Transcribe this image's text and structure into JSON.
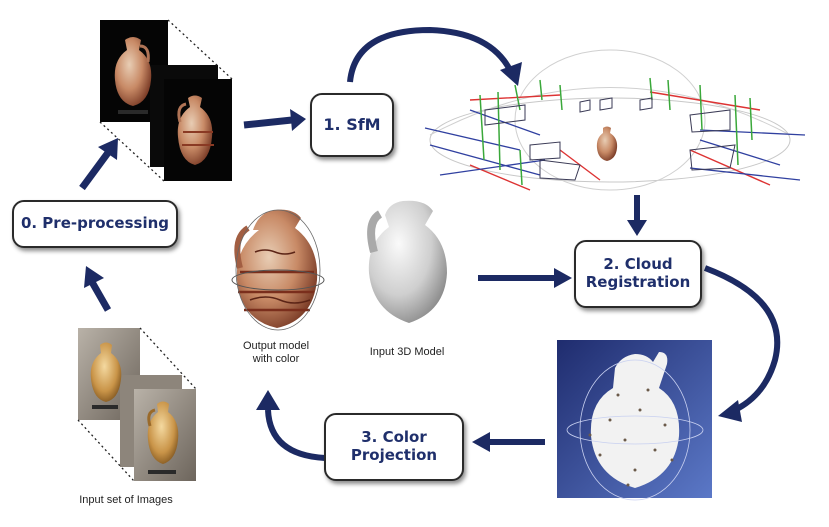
{
  "steps": {
    "preprocessing": "0. Pre-processing",
    "sfm": "1. SfM",
    "cloud_line1": "2. Cloud",
    "cloud_line2": "Registration",
    "color_line1": "3. Color",
    "color_line2": "Projection"
  },
  "labels": {
    "output_line1": "Output model",
    "output_line2": "with color",
    "input_model": "Input 3D Model",
    "input_images": "Input  set of Images"
  },
  "colors": {
    "arrow": "#1c2a63",
    "box_text": "#1f2f6b",
    "pointcloud_bg": "#2a3a86"
  }
}
